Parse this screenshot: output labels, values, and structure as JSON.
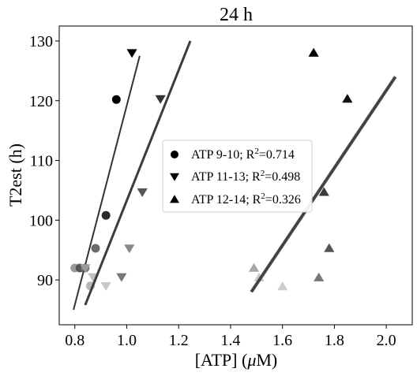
{
  "chart_data": {
    "type": "scatter",
    "title": "24 h",
    "xlabel_parts": {
      "pre": "[ATP] (",
      "mu": "μ",
      "post": "M)"
    },
    "ylabel": "T2est (h)",
    "xlim": [
      0.74,
      2.1
    ],
    "ylim": [
      82.5,
      132.5
    ],
    "xticks": [
      0.8,
      1.0,
      1.2,
      1.4,
      1.6,
      1.8,
      2.0
    ],
    "yticks": [
      90,
      100,
      110,
      120,
      130
    ],
    "xtick_labels": [
      "0.8",
      "1.0",
      "1.2",
      "1.4",
      "1.6",
      "1.8",
      "2.0"
    ],
    "ytick_labels": [
      "90",
      "100",
      "110",
      "120",
      "130"
    ],
    "legend_position": "center",
    "legend": [
      {
        "marker": "circle",
        "label_pre": "ATP 9-10; R",
        "label_sup": "2",
        "label_post": "=0.714"
      },
      {
        "marker": "triangle-down",
        "label_pre": "ATP 11-13; R",
        "label_sup": "2",
        "label_post": "=0.498"
      },
      {
        "marker": "triangle-up",
        "label_pre": "ATP 12-14; R",
        "label_sup": "2",
        "label_post": "=0.326"
      }
    ],
    "series": [
      {
        "marker": "circle",
        "points": [
          {
            "x": 0.8,
            "y": 92.0,
            "color": "#9a9a9a"
          },
          {
            "x": 0.82,
            "y": 92.0,
            "color": "#555555"
          },
          {
            "x": 0.84,
            "y": 92.0,
            "color": "#777777"
          },
          {
            "x": 0.86,
            "y": 89.0,
            "color": "#b5b5b5"
          },
          {
            "x": 0.88,
            "y": 95.3,
            "color": "#6a6a6a"
          },
          {
            "x": 0.92,
            "y": 100.8,
            "color": "#2a2a2a"
          },
          {
            "x": 0.96,
            "y": 120.2,
            "color": "#000000"
          }
        ],
        "fit": {
          "x": [
            0.795,
            1.05
          ],
          "y": [
            85.0,
            127.5
          ],
          "color": "#333333",
          "width": 2
        }
      },
      {
        "marker": "triangle-down",
        "points": [
          {
            "x": 0.84,
            "y": 92.0,
            "color": "#9a9a9a"
          },
          {
            "x": 0.87,
            "y": 90.5,
            "color": "#c0c0c0"
          },
          {
            "x": 0.92,
            "y": 89.0,
            "color": "#c8c8c8"
          },
          {
            "x": 0.98,
            "y": 90.5,
            "color": "#777777"
          },
          {
            "x": 1.01,
            "y": 95.3,
            "color": "#888888"
          },
          {
            "x": 1.02,
            "y": 128.0,
            "color": "#000000"
          },
          {
            "x": 1.06,
            "y": 104.7,
            "color": "#555555"
          },
          {
            "x": 1.13,
            "y": 120.3,
            "color": "#333333"
          }
        ],
        "fit": {
          "x": [
            0.84,
            1.245
          ],
          "y": [
            85.8,
            130.0
          ],
          "color": "#3c3c3c",
          "width": 3
        }
      },
      {
        "marker": "triangle-up",
        "points": [
          {
            "x": 1.49,
            "y": 92.0,
            "color": "#a8a8a8"
          },
          {
            "x": 1.51,
            "y": 90.4,
            "color": "#c8c8c8"
          },
          {
            "x": 1.6,
            "y": 88.9,
            "color": "#cdcdcd"
          },
          {
            "x": 1.72,
            "y": 128.0,
            "color": "#000000"
          },
          {
            "x": 1.74,
            "y": 90.4,
            "color": "#777777"
          },
          {
            "x": 1.76,
            "y": 104.7,
            "color": "#3a3a3a"
          },
          {
            "x": 1.78,
            "y": 95.3,
            "color": "#555555"
          },
          {
            "x": 1.85,
            "y": 120.3,
            "color": "#111111"
          }
        ],
        "fit": {
          "x": [
            1.48,
            2.035
          ],
          "y": [
            88.0,
            124.0
          ],
          "color": "#444444",
          "width": 4
        }
      }
    ]
  }
}
